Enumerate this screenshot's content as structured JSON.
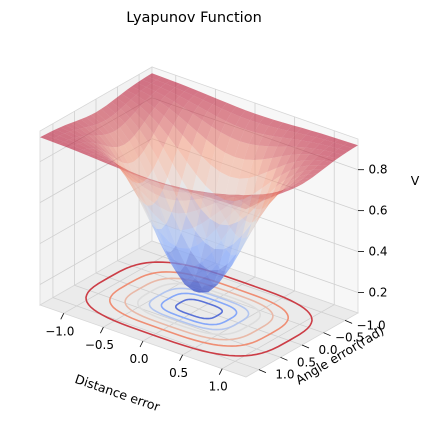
{
  "chart_data": {
    "type": "surface3d",
    "title": "Lyapunov Function",
    "xlabel": "Distance error",
    "ylabel": "Angle error(rad)",
    "zlabel": "V",
    "xlim": [
      -1.3,
      1.3
    ],
    "ylim": [
      -1.3,
      1.3
    ],
    "zlim": [
      0.1,
      0.95
    ],
    "xticks": [
      "−1.0",
      "−0.5",
      "0.0",
      "0.5",
      "1.0"
    ],
    "xtick_values": [
      -1.0,
      -0.5,
      0.0,
      0.5,
      1.0
    ],
    "yticks": [
      "−1.0",
      "−0.5",
      "0.0",
      "0.5",
      "1.0"
    ],
    "ytick_values": [
      -1.0,
      -0.5,
      0.0,
      0.5,
      1.0
    ],
    "zticks": [
      "0.2",
      "0.4",
      "0.6",
      "0.8"
    ],
    "ztick_values": [
      0.2,
      0.4,
      0.6,
      0.8
    ],
    "colormap": "coolwarm",
    "surface_min": 0.18,
    "surface_max": 0.92,
    "contour_levels": [
      0.25,
      0.35,
      0.45,
      0.55,
      0.65,
      0.75,
      0.85
    ],
    "grid": true
  }
}
